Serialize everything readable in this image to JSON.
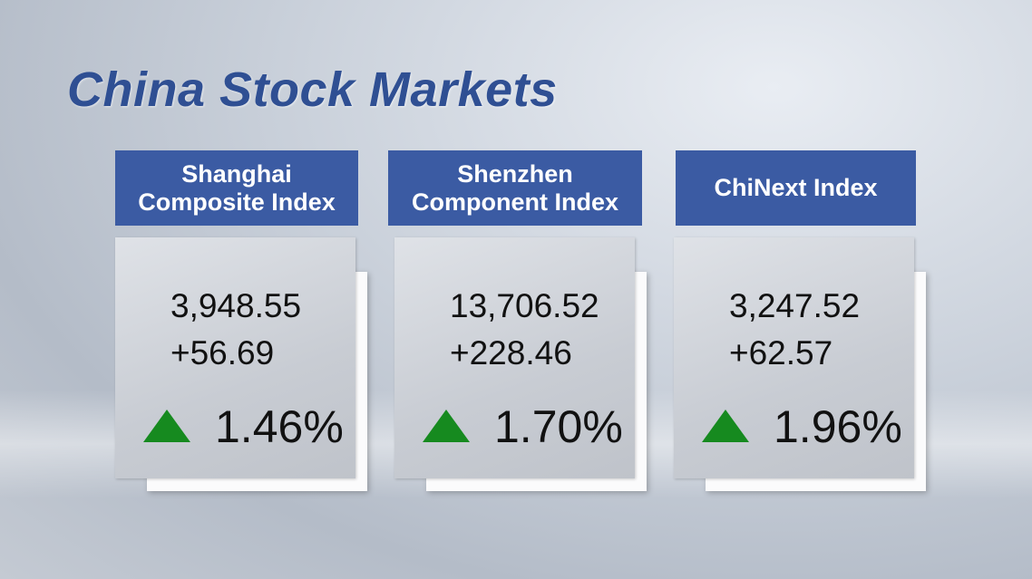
{
  "title": "China Stock Markets",
  "indices": [
    {
      "name_lines": [
        "Shanghai",
        "Composite Index"
      ],
      "value": "3,948.55",
      "change": "+56.69",
      "percent": "1.46%"
    },
    {
      "name_lines": [
        "Shenzhen",
        "Component Index"
      ],
      "value": "13,706.52",
      "change": "+228.46",
      "percent": "1.70%"
    },
    {
      "name_lines": [
        "ChiNext Index"
      ],
      "value": "3,247.52",
      "change": "+62.57",
      "percent": "1.96%"
    }
  ]
}
